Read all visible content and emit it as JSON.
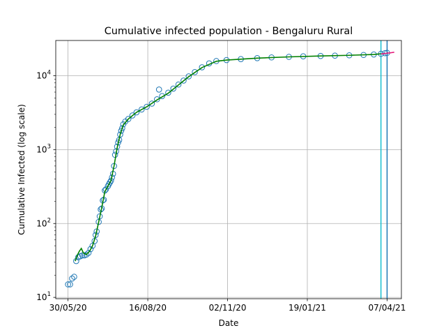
{
  "chart_data": {
    "type": "line",
    "title": "Cumulative infected population - Bengaluru Rural",
    "xlabel": "Date",
    "ylabel": "Cumulative Infected (log scale)",
    "y_scale": "log",
    "xlim": [
      "2020-05-18",
      "2021-04-21"
    ],
    "ylim": [
      9.6,
      30000
    ],
    "grid": true,
    "x_ticks": [
      {
        "date": "2020-05-30",
        "label": "30/05/20"
      },
      {
        "date": "2020-08-16",
        "label": "16/08/20"
      },
      {
        "date": "2020-11-02",
        "label": "02/11/20"
      },
      {
        "date": "2021-01-19",
        "label": "19/01/21"
      },
      {
        "date": "2021-04-07",
        "label": "07/04/21"
      }
    ],
    "y_ticks": [
      {
        "value": 10,
        "base": "10",
        "exp": "1"
      },
      {
        "value": 100,
        "base": "10",
        "exp": "2"
      },
      {
        "value": 1000,
        "base": "10",
        "exp": "3"
      },
      {
        "value": 10000,
        "base": "10",
        "exp": "4"
      }
    ],
    "vlines": [
      {
        "date": "2021-04-01",
        "color": "#17becf"
      },
      {
        "date": "2021-04-07",
        "color": "#1f77b4"
      }
    ],
    "series": [
      {
        "kind": "observed",
        "marker": "circle-open",
        "color": "#1f77b4",
        "points": [
          [
            "2020-05-30",
            15
          ],
          [
            "2020-06-01",
            15
          ],
          [
            "2020-06-03",
            18
          ],
          [
            "2020-06-05",
            19
          ],
          [
            "2020-06-07",
            31
          ],
          [
            "2020-06-09",
            35
          ],
          [
            "2020-06-11",
            36
          ],
          [
            "2020-06-13",
            37
          ],
          [
            "2020-06-15",
            37
          ],
          [
            "2020-06-17",
            38
          ],
          [
            "2020-06-19",
            40
          ],
          [
            "2020-06-21",
            45
          ],
          [
            "2020-06-23",
            50
          ],
          [
            "2020-06-25",
            58
          ],
          [
            "2020-06-26",
            70
          ],
          [
            "2020-06-27",
            78
          ],
          [
            "2020-06-29",
            105
          ],
          [
            "2020-06-30",
            125
          ],
          [
            "2020-07-01",
            155
          ],
          [
            "2020-07-02",
            160
          ],
          [
            "2020-07-03",
            205
          ],
          [
            "2020-07-04",
            210
          ],
          [
            "2020-07-05",
            280
          ],
          [
            "2020-07-06",
            290
          ],
          [
            "2020-07-08",
            320
          ],
          [
            "2020-07-09",
            340
          ],
          [
            "2020-07-10",
            360
          ],
          [
            "2020-07-11",
            380
          ],
          [
            "2020-07-12",
            420
          ],
          [
            "2020-07-13",
            470
          ],
          [
            "2020-07-14",
            600
          ],
          [
            "2020-07-15",
            850
          ],
          [
            "2020-07-16",
            950
          ],
          [
            "2020-07-17",
            1100
          ],
          [
            "2020-07-18",
            1250
          ],
          [
            "2020-07-19",
            1350
          ],
          [
            "2020-07-20",
            1600
          ],
          [
            "2020-07-21",
            1800
          ],
          [
            "2020-07-22",
            1950
          ],
          [
            "2020-07-23",
            2200
          ],
          [
            "2020-07-25",
            2400
          ],
          [
            "2020-07-28",
            2600
          ],
          [
            "2020-08-01",
            2900
          ],
          [
            "2020-08-05",
            3200
          ],
          [
            "2020-08-10",
            3500
          ],
          [
            "2020-08-15",
            3800
          ],
          [
            "2020-08-20",
            4200
          ],
          [
            "2020-08-25",
            4800
          ],
          [
            "2020-08-27",
            6500
          ],
          [
            "2020-08-30",
            5300
          ],
          [
            "2020-09-05",
            5900
          ],
          [
            "2020-09-10",
            6700
          ],
          [
            "2020-09-15",
            7600
          ],
          [
            "2020-09-20",
            8600
          ],
          [
            "2020-09-25",
            9800
          ],
          [
            "2020-10-01",
            11200
          ],
          [
            "2020-10-08",
            13000
          ],
          [
            "2020-10-15",
            14700
          ],
          [
            "2020-10-22",
            15800
          ],
          [
            "2020-11-01",
            16300
          ],
          [
            "2020-11-15",
            16800
          ],
          [
            "2020-12-01",
            17300
          ],
          [
            "2020-12-15",
            17700
          ],
          [
            "2021-01-01",
            18000
          ],
          [
            "2021-01-15",
            18300
          ],
          [
            "2021-02-01",
            18500
          ],
          [
            "2021-02-15",
            18700
          ],
          [
            "2021-03-01",
            18900
          ],
          [
            "2021-03-15",
            19100
          ],
          [
            "2021-03-25",
            19400
          ],
          [
            "2021-04-01",
            19800
          ],
          [
            "2021-04-05",
            20200
          ],
          [
            "2021-04-07",
            20400
          ]
        ]
      },
      {
        "kind": "fitted",
        "marker": "line",
        "color": "#008000",
        "points": [
          [
            "2020-06-06",
            31
          ],
          [
            "2020-06-08",
            37
          ],
          [
            "2020-06-10",
            42
          ],
          [
            "2020-06-12",
            46
          ],
          [
            "2020-06-14",
            40
          ],
          [
            "2020-06-17",
            38
          ],
          [
            "2020-06-20",
            42
          ],
          [
            "2020-06-23",
            50
          ],
          [
            "2020-06-26",
            68
          ],
          [
            "2020-06-29",
            105
          ],
          [
            "2020-07-02",
            165
          ],
          [
            "2020-07-05",
            270
          ],
          [
            "2020-07-08",
            320
          ],
          [
            "2020-07-11",
            380
          ],
          [
            "2020-07-14",
            600
          ],
          [
            "2020-07-17",
            1050
          ],
          [
            "2020-07-20",
            1600
          ],
          [
            "2020-07-23",
            2150
          ],
          [
            "2020-07-28",
            2600
          ],
          [
            "2020-08-05",
            3200
          ],
          [
            "2020-08-15",
            3800
          ],
          [
            "2020-08-25",
            4700
          ],
          [
            "2020-09-05",
            5800
          ],
          [
            "2020-09-15",
            7500
          ],
          [
            "2020-09-25",
            9700
          ],
          [
            "2020-10-08",
            12900
          ],
          [
            "2020-10-22",
            15700
          ],
          [
            "2020-11-01",
            16300
          ],
          [
            "2020-12-01",
            17300
          ],
          [
            "2021-01-01",
            18000
          ],
          [
            "2021-02-01",
            18500
          ],
          [
            "2021-03-01",
            18900
          ],
          [
            "2021-03-25",
            19400
          ],
          [
            "2021-04-01",
            19800
          ]
        ]
      },
      {
        "kind": "forecast",
        "marker": "line",
        "color": "#e6197a",
        "points": [
          [
            "2021-04-01",
            19700
          ],
          [
            "2021-04-05",
            20000
          ],
          [
            "2021-04-10",
            20400
          ],
          [
            "2021-04-14",
            20800
          ]
        ]
      }
    ]
  }
}
